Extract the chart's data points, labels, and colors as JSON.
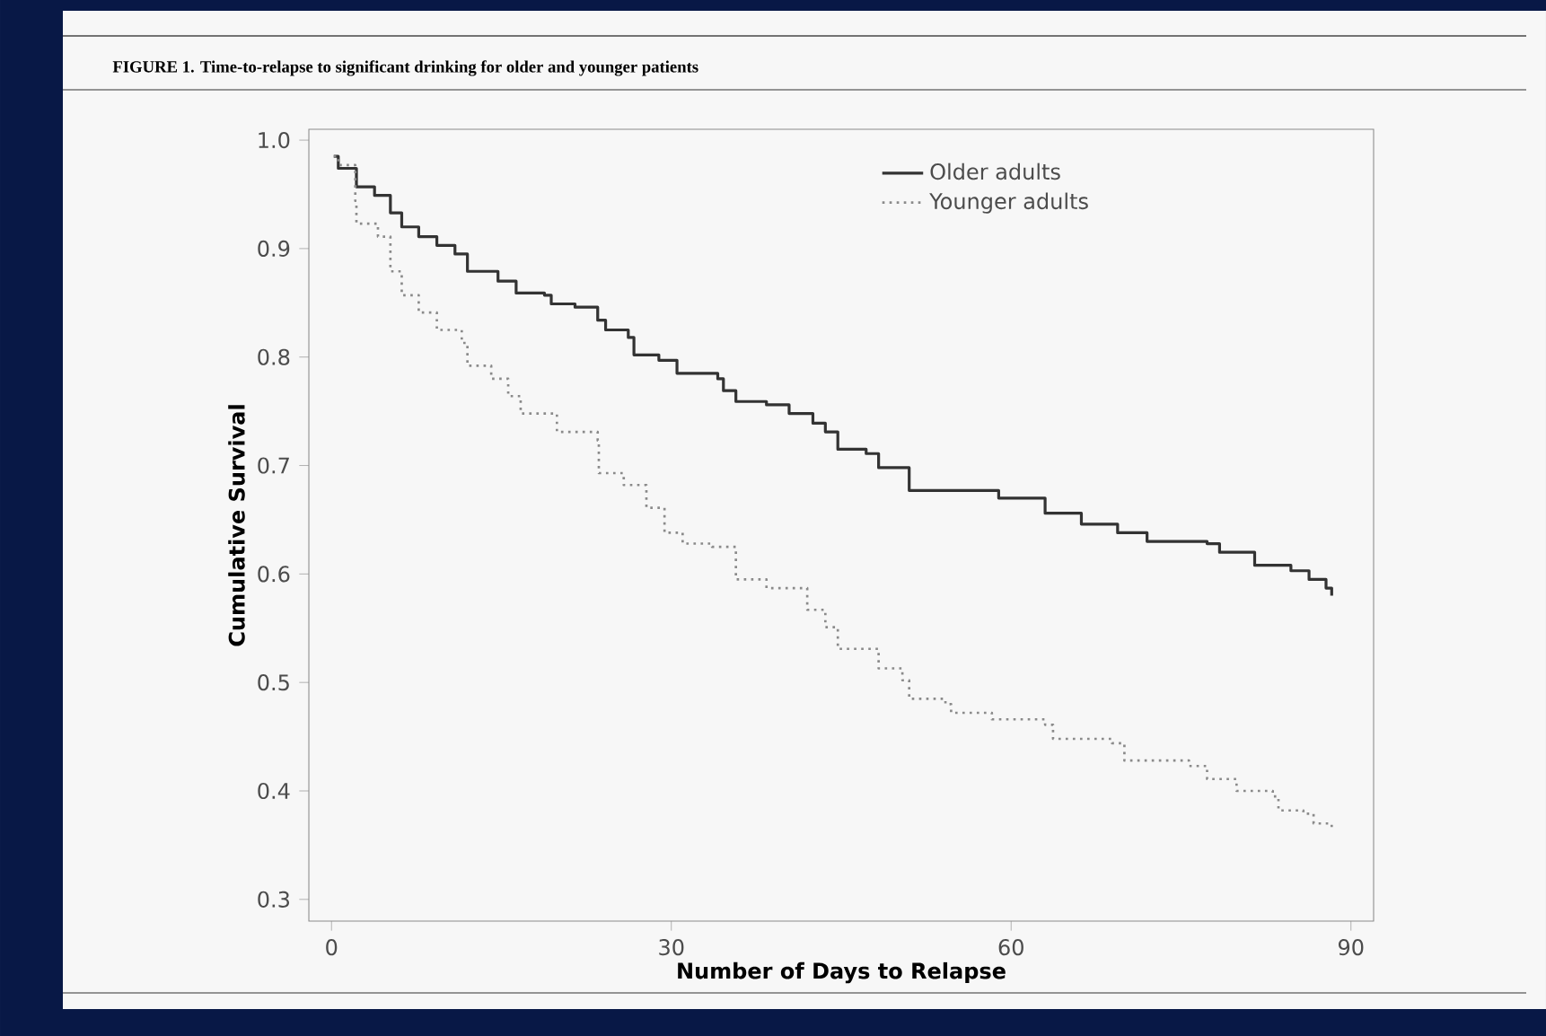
{
  "chart_data": {
    "type": "step",
    "title": "FIGURE 1. Time-to-relapse to significant drinking for older and younger patients",
    "xlabel": "Number of Days to Relapse",
    "ylabel": "Cumulative Survival",
    "xlim": [
      -2,
      92
    ],
    "ylim": [
      0.28,
      1.01
    ],
    "xticks": [
      0,
      30,
      60,
      90
    ],
    "yticks": [
      {
        "value": 0.3,
        "label": "0.3"
      },
      {
        "value": 0.4,
        "label": "0.4"
      },
      {
        "value": 0.5,
        "label": "0.5"
      },
      {
        "value": 0.6,
        "label": "0.6"
      },
      {
        "value": 0.7,
        "label": "0.7"
      },
      {
        "value": 0.8,
        "label": "0.8"
      },
      {
        "value": 0.9,
        "label": "0.9"
      },
      {
        "value": 1.0,
        "label": "1.0"
      }
    ],
    "legend": "top right",
    "grid": false,
    "series": [
      {
        "name": "Older adults",
        "color": "#333333",
        "line_style": "solid",
        "x": [
          0.2,
          0.6,
          2.2,
          3.8,
          5.2,
          6.2,
          7.7,
          9.3,
          10.9,
          12.0,
          14.7,
          16.3,
          18.8,
          19.4,
          21.5,
          23.5,
          24.2,
          26.2,
          26.7,
          28.9,
          30.5,
          34.1,
          34.6,
          35.7,
          38.4,
          40.4,
          42.5,
          43.6,
          44.7,
          47.2,
          48.3,
          51.0,
          58.9,
          63.0,
          66.2,
          69.4,
          72.0,
          77.3,
          78.4,
          81.5,
          84.7,
          86.3,
          87.8,
          88.3
        ],
        "values": [
          0.985,
          0.974,
          0.957,
          0.949,
          0.933,
          0.92,
          0.911,
          0.903,
          0.895,
          0.879,
          0.87,
          0.859,
          0.857,
          0.849,
          0.846,
          0.834,
          0.825,
          0.818,
          0.802,
          0.797,
          0.785,
          0.78,
          0.769,
          0.759,
          0.756,
          0.748,
          0.739,
          0.731,
          0.715,
          0.711,
          0.698,
          0.677,
          0.67,
          0.656,
          0.646,
          0.638,
          0.63,
          0.628,
          0.62,
          0.608,
          0.603,
          0.595,
          0.587,
          0.58
        ]
      },
      {
        "name": "Younger adults",
        "color": "#8a8a8a",
        "line_style": "dotted",
        "x": [
          0.2,
          0.6,
          2.1,
          2.2,
          4.1,
          5.2,
          6.2,
          7.7,
          9.3,
          11.5,
          12.0,
          14.1,
          15.6,
          16.7,
          19.9,
          23.5,
          23.6,
          25.8,
          27.8,
          29.4,
          31.0,
          33.6,
          35.7,
          38.4,
          42.0,
          43.6,
          44.7,
          48.3,
          50.4,
          51.0,
          54.2,
          54.7,
          58.3,
          63.0,
          63.7,
          68.9,
          70.0,
          75.7,
          77.3,
          79.9,
          83.1,
          83.6,
          85.8,
          86.7,
          88.3
        ],
        "values": [
          0.985,
          0.977,
          0.944,
          0.923,
          0.911,
          0.879,
          0.857,
          0.841,
          0.825,
          0.813,
          0.792,
          0.78,
          0.764,
          0.748,
          0.731,
          0.723,
          0.693,
          0.682,
          0.661,
          0.638,
          0.628,
          0.625,
          0.595,
          0.587,
          0.567,
          0.551,
          0.531,
          0.513,
          0.502,
          0.485,
          0.48,
          0.472,
          0.466,
          0.461,
          0.448,
          0.444,
          0.428,
          0.423,
          0.411,
          0.4,
          0.395,
          0.382,
          0.379,
          0.37,
          0.366
        ]
      }
    ]
  }
}
